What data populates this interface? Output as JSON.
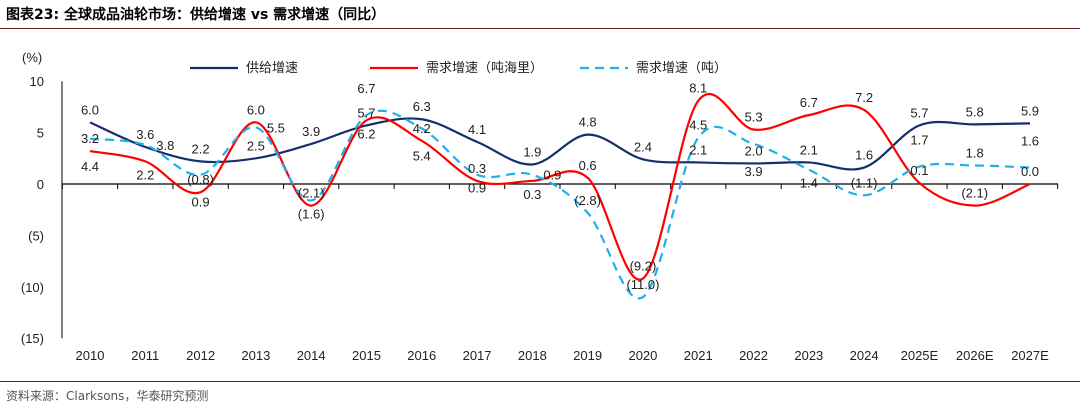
{
  "title": "图表23:   全球成品油轮市场：供给增速 vs 需求增速（同比）",
  "source": "资料来源：Clarksons，华泰研究预测",
  "chart_data": {
    "type": "line",
    "ylabel": "(%)",
    "categories": [
      "2010",
      "2011",
      "2012",
      "2013",
      "2014",
      "2015",
      "2016",
      "2017",
      "2018",
      "2019",
      "2020",
      "2021",
      "2022",
      "2023",
      "2024",
      "2025E",
      "2026E",
      "2027E"
    ],
    "ylim": [
      -15,
      10
    ],
    "yticks": [
      10,
      5,
      0,
      -5,
      -10,
      -15
    ],
    "ytick_labels": [
      "10",
      "5",
      "0",
      "(5)",
      "(10)",
      "(15)"
    ],
    "legend_position": "top",
    "grid": false,
    "smooth": true,
    "series": [
      {
        "name": "供给增速",
        "color": "#14306b",
        "dash": false,
        "values": [
          6.0,
          3.6,
          2.2,
          2.5,
          3.9,
          5.7,
          6.3,
          4.1,
          1.9,
          4.8,
          2.4,
          2.1,
          2.0,
          2.1,
          1.6,
          5.7,
          5.8,
          5.9
        ],
        "labels": [
          "6.0",
          "3.6",
          "2.2",
          "2.5",
          "3.9",
          "5.7",
          "6.3",
          "4.1",
          "1.9",
          "4.8",
          "2.4",
          "2.1",
          "2.0",
          "2.1",
          "1.6",
          "5.7",
          "5.8",
          "5.9"
        ]
      },
      {
        "name": "需求增速（吨海里）",
        "color": "#ff0000",
        "dash": false,
        "values": [
          3.2,
          2.2,
          -0.8,
          6.0,
          -2.1,
          6.2,
          4.2,
          0.3,
          0.3,
          0.6,
          -9.2,
          8.1,
          5.3,
          6.7,
          7.2,
          0.1,
          -2.1,
          0.0
        ],
        "labels": [
          "3.2",
          "2.2",
          "(0.8)",
          "6.0",
          "(2.1)",
          "6.2",
          "4.2",
          "0.3",
          "0.3",
          "0.6",
          "(9.2)",
          "8.1",
          "5.3",
          "6.7",
          "7.2",
          "0.1",
          "(2.1)",
          "0.0"
        ]
      },
      {
        "name": "需求增速（吨）",
        "color": "#1fb0ea",
        "dash": true,
        "values": [
          4.4,
          3.8,
          0.9,
          5.5,
          -1.6,
          6.7,
          5.4,
          0.9,
          0.9,
          -2.8,
          -11.0,
          4.5,
          3.9,
          1.4,
          -1.1,
          1.7,
          1.8,
          1.6
        ],
        "labels": [
          "4.4",
          "3.8",
          "0.9",
          "5.5",
          "(1.6)",
          "6.7",
          "5.4",
          "0.9",
          "0.9",
          "(2.8)",
          "(11.0)",
          "4.5",
          "3.9",
          "1.4",
          "(1.1)",
          "1.7",
          "1.8",
          "1.6"
        ]
      }
    ]
  }
}
